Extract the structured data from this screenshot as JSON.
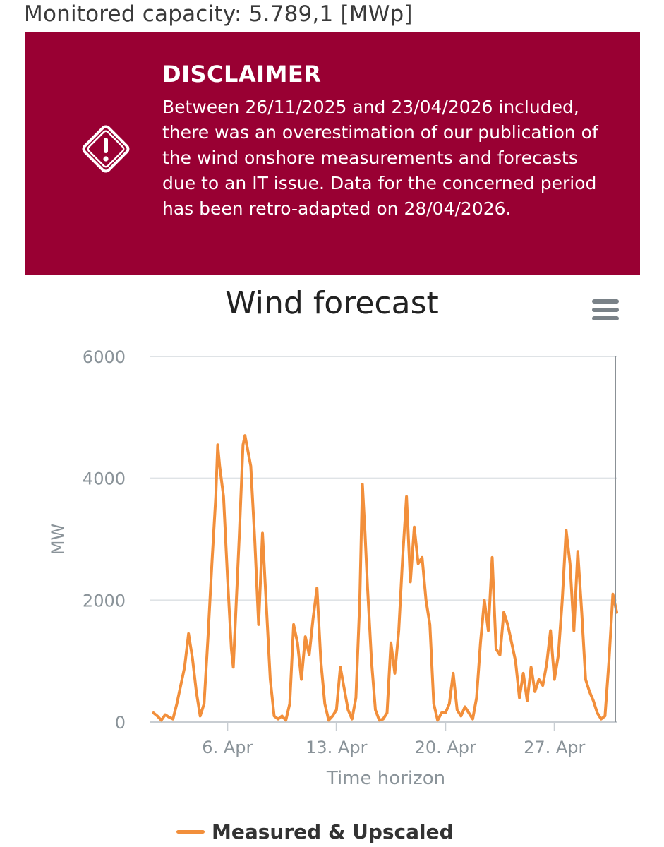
{
  "header": {
    "capacity_text": "Monitored capacity: 5.789,1 [MWp]"
  },
  "disclaimer": {
    "icon": "warning-diamond-icon",
    "background": "#990033",
    "title": "DISCLAIMER",
    "text": "Between 26/11/2025 and 23/04/2026 included, there was an overestimation of our publication of the wind onshore measurements and forecasts due to an IT issue. Data for the concerned period has been retro-adapted on 28/04/2026."
  },
  "menu": {
    "icon": "hamburger-menu-icon"
  },
  "chart_data": {
    "type": "line",
    "title": "Wind forecast",
    "xlabel": "Time horizon",
    "ylabel": "MW",
    "ylim": [
      0,
      6000
    ],
    "xlim": [
      "2026-04-01",
      "2026-05-01"
    ],
    "y_ticks": [
      0,
      2000,
      4000,
      6000
    ],
    "x_ticks": [
      {
        "date": "2026-04-06",
        "label": "6. Apr"
      },
      {
        "date": "2026-04-13",
        "label": "13. Apr"
      },
      {
        "date": "2026-04-20",
        "label": "20. Apr"
      },
      {
        "date": "2026-04-27",
        "label": "27. Apr"
      }
    ],
    "grid": "horizontal",
    "legend_position": "bottom",
    "series": [
      {
        "name": "Measured & Upscaled",
        "color": "#f28f3b",
        "points": [
          [
            "2026-04-01 06:00",
            150
          ],
          [
            "2026-04-01 12:00",
            100
          ],
          [
            "2026-04-01 18:00",
            30
          ],
          [
            "2026-04-02 00:00",
            120
          ],
          [
            "2026-04-02 06:00",
            80
          ],
          [
            "2026-04-02 12:00",
            50
          ],
          [
            "2026-04-02 18:00",
            300
          ],
          [
            "2026-04-03 00:00",
            600
          ],
          [
            "2026-04-03 06:00",
            900
          ],
          [
            "2026-04-03 12:00",
            1450
          ],
          [
            "2026-04-03 18:00",
            1050
          ],
          [
            "2026-04-04 00:00",
            500
          ],
          [
            "2026-04-04 06:00",
            100
          ],
          [
            "2026-04-04 12:00",
            300
          ],
          [
            "2026-04-04 18:00",
            1400
          ],
          [
            "2026-04-05 00:00",
            2600
          ],
          [
            "2026-04-05 06:00",
            3700
          ],
          [
            "2026-04-05 09:00",
            4550
          ],
          [
            "2026-04-05 12:00",
            4200
          ],
          [
            "2026-04-05 18:00",
            3700
          ],
          [
            "2026-04-06 00:00",
            2400
          ],
          [
            "2026-04-06 06:00",
            1200
          ],
          [
            "2026-04-06 09:00",
            900
          ],
          [
            "2026-04-06 18:00",
            3000
          ],
          [
            "2026-04-07 00:00",
            4550
          ],
          [
            "2026-04-07 03:00",
            4700
          ],
          [
            "2026-04-07 12:00",
            4200
          ],
          [
            "2026-04-07 18:00",
            3000
          ],
          [
            "2026-04-08 00:00",
            1600
          ],
          [
            "2026-04-08 06:00",
            3100
          ],
          [
            "2026-04-08 12:00",
            1900
          ],
          [
            "2026-04-08 18:00",
            700
          ],
          [
            "2026-04-09 00:00",
            100
          ],
          [
            "2026-04-09 06:00",
            50
          ],
          [
            "2026-04-09 12:00",
            100
          ],
          [
            "2026-04-09 18:00",
            30
          ],
          [
            "2026-04-10 00:00",
            300
          ],
          [
            "2026-04-10 06:00",
            1600
          ],
          [
            "2026-04-10 12:00",
            1300
          ],
          [
            "2026-04-10 18:00",
            700
          ],
          [
            "2026-04-11 00:00",
            1400
          ],
          [
            "2026-04-11 06:00",
            1100
          ],
          [
            "2026-04-11 12:00",
            1700
          ],
          [
            "2026-04-11 18:00",
            2200
          ],
          [
            "2026-04-12 00:00",
            1000
          ],
          [
            "2026-04-12 06:00",
            300
          ],
          [
            "2026-04-12 12:00",
            30
          ],
          [
            "2026-04-12 18:00",
            100
          ],
          [
            "2026-04-13 00:00",
            200
          ],
          [
            "2026-04-13 06:00",
            900
          ],
          [
            "2026-04-13 12:00",
            550
          ],
          [
            "2026-04-13 18:00",
            200
          ],
          [
            "2026-04-14 00:00",
            50
          ],
          [
            "2026-04-14 06:00",
            400
          ],
          [
            "2026-04-14 12:00",
            2000
          ],
          [
            "2026-04-14 16:00",
            3900
          ],
          [
            "2026-04-14 20:00",
            3100
          ],
          [
            "2026-04-15 00:00",
            2200
          ],
          [
            "2026-04-15 06:00",
            1000
          ],
          [
            "2026-04-15 12:00",
            200
          ],
          [
            "2026-04-15 18:00",
            30
          ],
          [
            "2026-04-16 00:00",
            50
          ],
          [
            "2026-04-16 06:00",
            150
          ],
          [
            "2026-04-16 12:00",
            1300
          ],
          [
            "2026-04-16 18:00",
            800
          ],
          [
            "2026-04-17 00:00",
            1500
          ],
          [
            "2026-04-17 06:00",
            2700
          ],
          [
            "2026-04-17 12:00",
            3700
          ],
          [
            "2026-04-17 18:00",
            2300
          ],
          [
            "2026-04-18 00:00",
            3200
          ],
          [
            "2026-04-18 06:00",
            2600
          ],
          [
            "2026-04-18 12:00",
            2700
          ],
          [
            "2026-04-18 18:00",
            2000
          ],
          [
            "2026-04-19 00:00",
            1600
          ],
          [
            "2026-04-19 06:00",
            300
          ],
          [
            "2026-04-19 12:00",
            30
          ],
          [
            "2026-04-19 18:00",
            150
          ],
          [
            "2026-04-20 00:00",
            150
          ],
          [
            "2026-04-20 06:00",
            300
          ],
          [
            "2026-04-20 12:00",
            800
          ],
          [
            "2026-04-20 18:00",
            200
          ],
          [
            "2026-04-21 00:00",
            100
          ],
          [
            "2026-04-21 06:00",
            250
          ],
          [
            "2026-04-21 12:00",
            150
          ],
          [
            "2026-04-21 18:00",
            50
          ],
          [
            "2026-04-22 00:00",
            400
          ],
          [
            "2026-04-22 06:00",
            1300
          ],
          [
            "2026-04-22 12:00",
            2000
          ],
          [
            "2026-04-22 18:00",
            1500
          ],
          [
            "2026-04-23 00:00",
            2700
          ],
          [
            "2026-04-23 06:00",
            1200
          ],
          [
            "2026-04-23 12:00",
            1100
          ],
          [
            "2026-04-23 18:00",
            1800
          ],
          [
            "2026-04-24 00:00",
            1600
          ],
          [
            "2026-04-24 06:00",
            1300
          ],
          [
            "2026-04-24 12:00",
            1000
          ],
          [
            "2026-04-24 18:00",
            400
          ],
          [
            "2026-04-25 00:00",
            800
          ],
          [
            "2026-04-25 06:00",
            350
          ],
          [
            "2026-04-25 12:00",
            900
          ],
          [
            "2026-04-25 18:00",
            500
          ],
          [
            "2026-04-26 00:00",
            700
          ],
          [
            "2026-04-26 06:00",
            600
          ],
          [
            "2026-04-26 12:00",
            950
          ],
          [
            "2026-04-26 18:00",
            1500
          ],
          [
            "2026-04-27 00:00",
            700
          ],
          [
            "2026-04-27 06:00",
            1100
          ],
          [
            "2026-04-27 12:00",
            2000
          ],
          [
            "2026-04-27 18:00",
            3150
          ],
          [
            "2026-04-28 00:00",
            2600
          ],
          [
            "2026-04-28 06:00",
            1500
          ],
          [
            "2026-04-28 12:00",
            2800
          ],
          [
            "2026-04-28 18:00",
            1800
          ],
          [
            "2026-04-29 00:00",
            700
          ],
          [
            "2026-04-29 06:00",
            500
          ],
          [
            "2026-04-29 12:00",
            350
          ],
          [
            "2026-04-29 18:00",
            150
          ],
          [
            "2026-04-30 00:00",
            50
          ],
          [
            "2026-04-30 06:00",
            100
          ],
          [
            "2026-04-30 12:00",
            1000
          ],
          [
            "2026-04-30 18:00",
            2100
          ],
          [
            "2026-05-01 00:00",
            1800
          ]
        ]
      }
    ]
  }
}
